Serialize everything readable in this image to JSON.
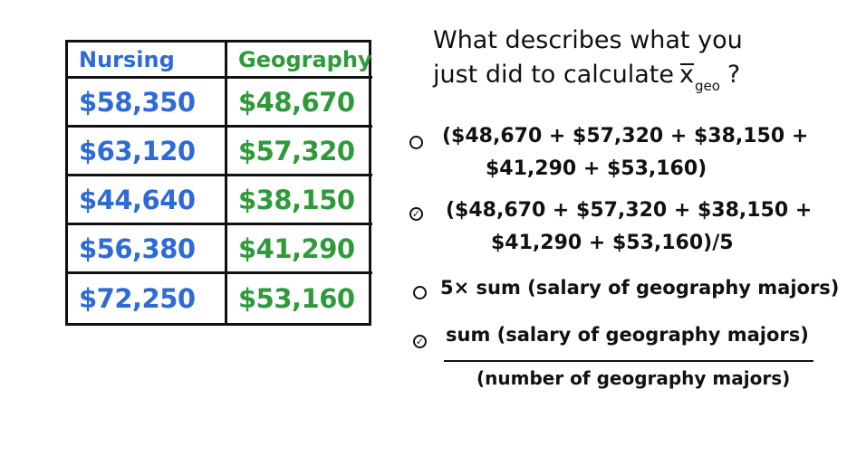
{
  "colors": {
    "blue": "#2f6bd6",
    "green": "#2e9a3a"
  },
  "table": {
    "headers": [
      "Nursing",
      "Geography"
    ],
    "rows": [
      [
        "$58,350",
        "$48,670"
      ],
      [
        "$63,120",
        "$57,320"
      ],
      [
        "$44,640",
        "$38,150"
      ],
      [
        "$56,380",
        "$41,290"
      ],
      [
        "$72,250",
        "$53,160"
      ]
    ]
  },
  "question": {
    "line1": "What describes what you",
    "line2": "just did to calculate",
    "xbar": "x",
    "subscript": "geo",
    "end": "?"
  },
  "options": [
    {
      "lines": [
        "($48,670 + $57,320 + $38,150 +",
        "$41,290 + $53,160)"
      ],
      "checked": false
    },
    {
      "lines": [
        "($48,670 + $57,320 + $38,150 +",
        "$41,290 + $53,160)/5"
      ],
      "checked": true
    },
    {
      "lines": [
        "5× sum (salary of geography majors)"
      ],
      "checked": false
    },
    {
      "numerator": "sum (salary of geography majors)",
      "denominator": "(number of geography majors)",
      "checked": true
    }
  ]
}
